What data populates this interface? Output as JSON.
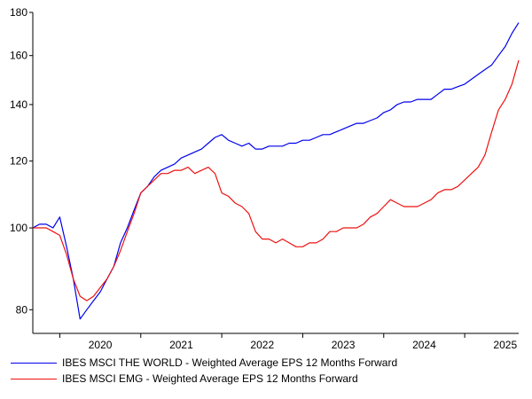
{
  "chart_data": {
    "type": "line",
    "y_scale": "log",
    "ylim": [
      75,
      180
    ],
    "y_ticks": [
      80,
      100,
      120,
      140,
      160,
      180
    ],
    "x_ticks": [
      "2020",
      "2021",
      "2022",
      "2023",
      "2024",
      "2025"
    ],
    "xlim": [
      "2019-09",
      "2025-09"
    ],
    "grid": false,
    "legend_position": "bottom-left",
    "series": [
      {
        "name": "IBES MSCI THE WORLD - Weighted Average EPS 12 Months Forward",
        "color": "#0000ee",
        "x": [
          "2019-09",
          "2019-10",
          "2019-11",
          "2019-12",
          "2020-01",
          "2020-02",
          "2020-03",
          "2020-04",
          "2020-05",
          "2020-06",
          "2020-07",
          "2020-08",
          "2020-09",
          "2020-10",
          "2020-11",
          "2020-12",
          "2021-01",
          "2021-02",
          "2021-03",
          "2021-04",
          "2021-05",
          "2021-06",
          "2021-07",
          "2021-08",
          "2021-09",
          "2021-10",
          "2021-11",
          "2021-12",
          "2022-01",
          "2022-02",
          "2022-03",
          "2022-04",
          "2022-05",
          "2022-06",
          "2022-07",
          "2022-08",
          "2022-09",
          "2022-10",
          "2022-11",
          "2022-12",
          "2023-01",
          "2023-02",
          "2023-03",
          "2023-04",
          "2023-05",
          "2023-06",
          "2023-07",
          "2023-08",
          "2023-09",
          "2023-10",
          "2023-11",
          "2023-12",
          "2024-01",
          "2024-02",
          "2024-03",
          "2024-04",
          "2024-05",
          "2024-06",
          "2024-07",
          "2024-08",
          "2024-09",
          "2024-10",
          "2024-11",
          "2024-12",
          "2025-01",
          "2025-02",
          "2025-03",
          "2025-04",
          "2025-05",
          "2025-06",
          "2025-07",
          "2025-08",
          "2025-09"
        ],
        "values": [
          100,
          101,
          101,
          100,
          103,
          95,
          87,
          78,
          80,
          82,
          84,
          87,
          90,
          96,
          100,
          105,
          110,
          112,
          115,
          117,
          118,
          119,
          121,
          122,
          123,
          124,
          126,
          128,
          129,
          127,
          126,
          125,
          126,
          124,
          124,
          125,
          125,
          125,
          126,
          126,
          127,
          127,
          128,
          129,
          129,
          130,
          131,
          132,
          133,
          133,
          134,
          135,
          137,
          138,
          140,
          141,
          141,
          142,
          142,
          142,
          144,
          146,
          146,
          147,
          148,
          150,
          152,
          154,
          156,
          160,
          164,
          170,
          175
        ]
      },
      {
        "name": "IBES MSCI EMG - Weighted Average EPS 12 Months Forward",
        "color": "#ee1111",
        "x": [
          "2019-09",
          "2019-10",
          "2019-11",
          "2019-12",
          "2020-01",
          "2020-02",
          "2020-03",
          "2020-04",
          "2020-05",
          "2020-06",
          "2020-07",
          "2020-08",
          "2020-09",
          "2020-10",
          "2020-11",
          "2020-12",
          "2021-01",
          "2021-02",
          "2021-03",
          "2021-04",
          "2021-05",
          "2021-06",
          "2021-07",
          "2021-08",
          "2021-09",
          "2021-10",
          "2021-11",
          "2021-12",
          "2022-01",
          "2022-02",
          "2022-03",
          "2022-04",
          "2022-05",
          "2022-06",
          "2022-07",
          "2022-08",
          "2022-09",
          "2022-10",
          "2022-11",
          "2022-12",
          "2023-01",
          "2023-02",
          "2023-03",
          "2023-04",
          "2023-05",
          "2023-06",
          "2023-07",
          "2023-08",
          "2023-09",
          "2023-10",
          "2023-11",
          "2023-12",
          "2024-01",
          "2024-02",
          "2024-03",
          "2024-04",
          "2024-05",
          "2024-06",
          "2024-07",
          "2024-08",
          "2024-09",
          "2024-10",
          "2024-11",
          "2024-12",
          "2025-01",
          "2025-02",
          "2025-03",
          "2025-04",
          "2025-05",
          "2025-06",
          "2025-07",
          "2025-08",
          "2025-09"
        ],
        "values": [
          100,
          100,
          100,
          99,
          98,
          93,
          87,
          83,
          82,
          83,
          85,
          87,
          90,
          94,
          99,
          104,
          110,
          112,
          114,
          116,
          116,
          117,
          117,
          118,
          116,
          117,
          118,
          116,
          110,
          109,
          107,
          106,
          104,
          99,
          97,
          97,
          96,
          97,
          96,
          95,
          95,
          96,
          96,
          97,
          99,
          99,
          100,
          100,
          100,
          101,
          103,
          104,
          106,
          108,
          107,
          106,
          106,
          106,
          107,
          108,
          110,
          111,
          111,
          112,
          114,
          116,
          118,
          122,
          130,
          138,
          142,
          148,
          158
        ]
      }
    ]
  }
}
